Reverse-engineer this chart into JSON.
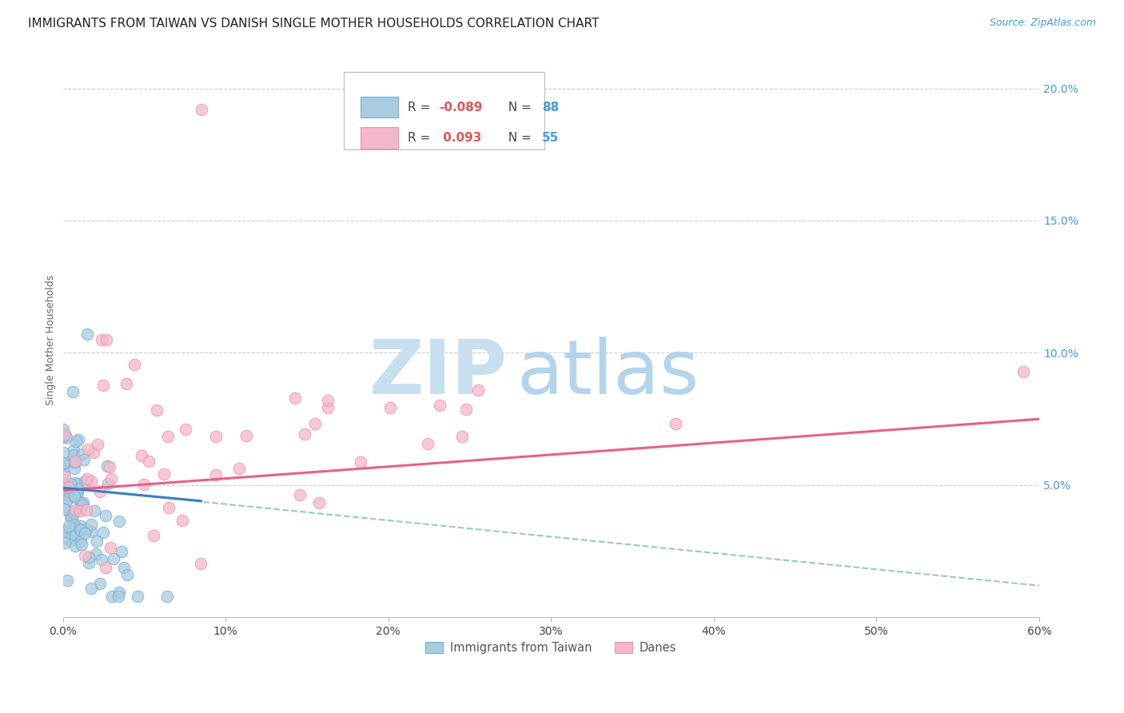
{
  "title": "IMMIGRANTS FROM TAIWAN VS DANISH SINGLE MOTHER HOUSEHOLDS CORRELATION CHART",
  "source": "Source: ZipAtlas.com",
  "ylabel": "Single Mother Households",
  "legend_label1": "Immigrants from Taiwan",
  "legend_label2": "Danes",
  "R1": -0.089,
  "N1": 88,
  "R2": 0.093,
  "N2": 55,
  "color1": "#a8cce0",
  "color2": "#f4b8c8",
  "color1_edge": "#7bafd4",
  "color2_edge": "#f090ae",
  "trend1_solid_color": "#3a7fc1",
  "trend2_solid_color": "#e8608a",
  "trend1_dash_color": "#90bcd8",
  "xmin": 0.0,
  "xmax": 0.6,
  "ymin": 0.0,
  "ymax": 0.21,
  "title_fontsize": 11,
  "axis_label_fontsize": 9,
  "tick_fontsize": 10,
  "source_fontsize": 9,
  "background_color": "#ffffff",
  "grid_color": "#cccccc",
  "watermark_color": "#c8dff0",
  "right_ytick_color": "#4499dd",
  "legend_R_color": "#e05555",
  "legend_N_color": "#4499dd",
  "yticks": [
    0.05,
    0.1,
    0.15,
    0.2
  ],
  "ytick_labels": [
    "5.0%",
    "10.0%",
    "15.0%",
    "20.0%"
  ],
  "trend1_x0": 0.0,
  "trend1_x1": 0.085,
  "trend1_y0": 0.049,
  "trend1_y1": 0.044,
  "trend1_dash_y0": 0.049,
  "trend1_dash_y1": 0.012,
  "trend2_y0": 0.048,
  "trend2_y1": 0.075
}
